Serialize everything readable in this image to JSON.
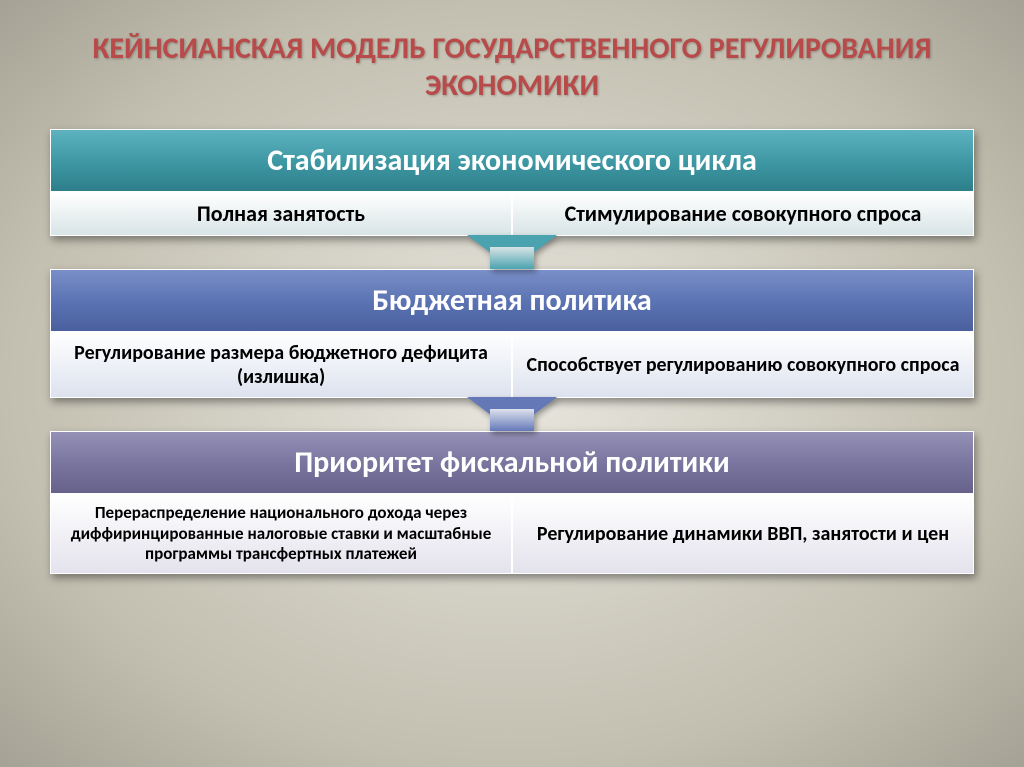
{
  "slide": {
    "title": "КЕЙНСИАНСКАЯ МОДЕЛЬ ГОСУДАРСТВЕННОГО РЕГУЛИРОВАНИЯ ЭКОНОМИКИ",
    "title_color": "#b84a4a",
    "title_fontsize": 30,
    "background_gradient_center": "#e8e6de",
    "background_gradient_edge": "#a5a295",
    "blocks": [
      {
        "header": "Стабилизация экономического цикла",
        "header_bg": "#3f99a5",
        "header_fontsize": 30,
        "header_gradient_top": "#5db3bf",
        "header_gradient_bottom": "#2d7f8a",
        "row_bg": "#d8e4e6",
        "row_fontsize": 22,
        "left": "Полная занятость",
        "right": "Стимулирование совокупного спроса",
        "arrow_color": "#4aa3af",
        "arrow_stem_bg": "#d8e4e6"
      },
      {
        "header": "Бюджетная политика",
        "header_bg": "#5c74b4",
        "header_fontsize": 30,
        "header_gradient_top": "#7a8fc8",
        "header_gradient_bottom": "#4a5f9e",
        "row_bg": "#dde2ee",
        "row_fontsize": 20,
        "left": "Регулирование размера бюджетного дефицита (излишка)",
        "right": "Способствует регулированию совокупного спроса",
        "arrow_color": "#6478b8",
        "arrow_stem_bg": "#dde2ee"
      },
      {
        "header": "Приоритет фискальной политики",
        "header_bg": "#7a76a0",
        "header_fontsize": 30,
        "header_gradient_top": "#9490b6",
        "header_gradient_bottom": "#66628c",
        "row_bg": "#e4e2ec",
        "row_fontsize": 17,
        "row_fontsize_right": 20,
        "left": "Перераспределение национального дохода через диффиринцированные налоговые ставки и масштабные программы трансфертных платежей",
        "right": "Регулирование динамики ВВП, занятости и цен"
      }
    ]
  }
}
